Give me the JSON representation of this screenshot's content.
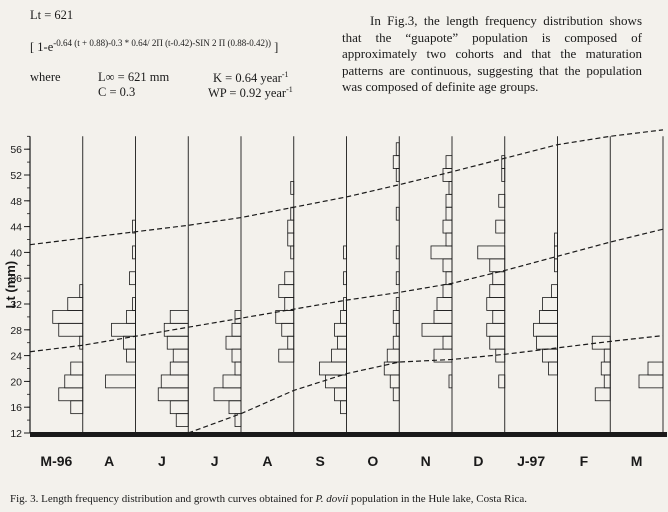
{
  "formula": {
    "lt_line": "Lt = 621",
    "bracket_open": "[ 1-e",
    "exponent": "-0.64 (t + 0.88)-0.3 * 0.64/ 2Π (t-0.42)-SIN 2 Π (0.88-0.42))",
    "bracket_close": "]",
    "where": "where",
    "linf": "L∞ = 621 mm",
    "k": "K = 0.64 year",
    "k_sup": "-1",
    "c": "C = 0.3",
    "wp": "WP = 0.92 year",
    "wp_sup": "-1"
  },
  "paragraph": {
    "text": "In Fig.3, the length frequency distribution shows that the “guapote” population is composed of approximately two cohorts and that the maturation patterns are continuous, suggesting that the population was composed of definite age groups."
  },
  "caption": {
    "prefix": "Fig. 3. Length frequency distribution and growth curves obtained for ",
    "species": "P. dovii",
    "suffix": " population in the Hule lake, Costa Rica."
  },
  "colors": {
    "ink": "#1a1a1a",
    "paper": "#f3f1ec"
  },
  "chart_data": {
    "type": "bar",
    "ylabel": "Lt (mm)",
    "ylim": [
      12,
      58
    ],
    "yticks": [
      12,
      16,
      20,
      24,
      28,
      32,
      36,
      40,
      44,
      48,
      52,
      56
    ],
    "categories": [
      "M-96",
      "A",
      "J",
      "J",
      "A",
      "S",
      "O",
      "N",
      "D",
      "J-97",
      "F",
      "M"
    ],
    "samples": [
      [
        [
          16,
          4
        ],
        [
          18,
          8
        ],
        [
          20,
          6
        ],
        [
          22,
          4
        ],
        [
          26,
          1
        ],
        [
          28,
          8
        ],
        [
          30,
          10
        ],
        [
          32,
          5
        ],
        [
          34,
          1
        ]
      ],
      [
        [
          20,
          10
        ],
        [
          24,
          3
        ],
        [
          26,
          4
        ],
        [
          28,
          8
        ],
        [
          30,
          3
        ],
        [
          32,
          1
        ],
        [
          36,
          2
        ],
        [
          40,
          1
        ],
        [
          44,
          1
        ]
      ],
      [
        [
          14,
          4
        ],
        [
          16,
          6
        ],
        [
          18,
          10
        ],
        [
          20,
          9
        ],
        [
          22,
          6
        ],
        [
          24,
          5
        ],
        [
          26,
          7
        ],
        [
          28,
          8
        ],
        [
          30,
          6
        ]
      ],
      [
        [
          14,
          2
        ],
        [
          16,
          4
        ],
        [
          18,
          9
        ],
        [
          20,
          6
        ],
        [
          22,
          2
        ],
        [
          24,
          3
        ],
        [
          26,
          5
        ],
        [
          28,
          3
        ],
        [
          30,
          2
        ]
      ],
      [
        [
          24,
          5
        ],
        [
          26,
          2
        ],
        [
          28,
          4
        ],
        [
          30,
          6
        ],
        [
          32,
          3
        ],
        [
          34,
          5
        ],
        [
          36,
          3
        ],
        [
          40,
          1
        ],
        [
          42,
          2
        ],
        [
          44,
          2
        ],
        [
          46,
          1
        ],
        [
          50,
          1
        ]
      ],
      [
        [
          16,
          2
        ],
        [
          18,
          4
        ],
        [
          20,
          7
        ],
        [
          22,
          9
        ],
        [
          24,
          5
        ],
        [
          26,
          3
        ],
        [
          28,
          4
        ],
        [
          30,
          2
        ],
        [
          32,
          1
        ],
        [
          36,
          1
        ],
        [
          40,
          1
        ]
      ],
      [
        [
          18,
          2
        ],
        [
          20,
          3
        ],
        [
          22,
          5
        ],
        [
          24,
          4
        ],
        [
          26,
          2
        ],
        [
          28,
          1
        ],
        [
          30,
          2
        ],
        [
          32,
          1
        ],
        [
          36,
          1
        ],
        [
          40,
          1
        ],
        [
          46,
          1
        ],
        [
          52,
          1
        ],
        [
          54,
          2
        ],
        [
          56,
          1
        ]
      ],
      [
        [
          20,
          1
        ],
        [
          24,
          6
        ],
        [
          26,
          3
        ],
        [
          28,
          10
        ],
        [
          30,
          6
        ],
        [
          32,
          5
        ],
        [
          34,
          3
        ],
        [
          36,
          2
        ],
        [
          38,
          3
        ],
        [
          40,
          7
        ],
        [
          42,
          2
        ],
        [
          44,
          3
        ],
        [
          46,
          2
        ],
        [
          48,
          2
        ],
        [
          50,
          1
        ],
        [
          52,
          3
        ],
        [
          54,
          2
        ]
      ],
      [
        [
          20,
          2
        ],
        [
          24,
          3
        ],
        [
          26,
          5
        ],
        [
          28,
          6
        ],
        [
          30,
          4
        ],
        [
          32,
          6
        ],
        [
          34,
          5
        ],
        [
          36,
          4
        ],
        [
          38,
          5
        ],
        [
          40,
          9
        ],
        [
          44,
          3
        ],
        [
          48,
          2
        ],
        [
          52,
          1
        ],
        [
          54,
          1
        ]
      ],
      [
        [
          22,
          3
        ],
        [
          24,
          5
        ],
        [
          26,
          7
        ],
        [
          28,
          8
        ],
        [
          30,
          6
        ],
        [
          32,
          5
        ],
        [
          34,
          2
        ],
        [
          38,
          1
        ],
        [
          40,
          1
        ],
        [
          42,
          1
        ]
      ],
      [
        [
          18,
          5
        ],
        [
          20,
          2
        ],
        [
          22,
          3
        ],
        [
          24,
          2
        ],
        [
          26,
          6
        ]
      ],
      [
        [
          20,
          8
        ],
        [
          22,
          5
        ]
      ]
    ],
    "growth_curves": [
      {
        "x": [
          0,
          1,
          2,
          3,
          4,
          5,
          6,
          7,
          8,
          9,
          10,
          11,
          12
        ],
        "y": [
          41.2,
          42.2,
          43.2,
          44.2,
          45.4,
          47.0,
          48.6,
          50.5,
          52.5,
          54.6,
          56.7,
          58.0,
          59.0
        ]
      },
      {
        "x": [
          0,
          1,
          2,
          3,
          4,
          5,
          6,
          7,
          8,
          9,
          10,
          11,
          12
        ],
        "y": [
          24.6,
          25.6,
          27.0,
          28.4,
          29.8,
          31.2,
          32.6,
          33.8,
          35.2,
          37.2,
          39.4,
          41.6,
          43.6
        ]
      },
      {
        "x": [
          3,
          4,
          5,
          6,
          7,
          8,
          9,
          10,
          11,
          12
        ],
        "y": [
          12.0,
          15.0,
          18.6,
          21.2,
          23.0,
          23.4,
          24.2,
          25.2,
          26.2,
          27.1
        ]
      }
    ]
  }
}
